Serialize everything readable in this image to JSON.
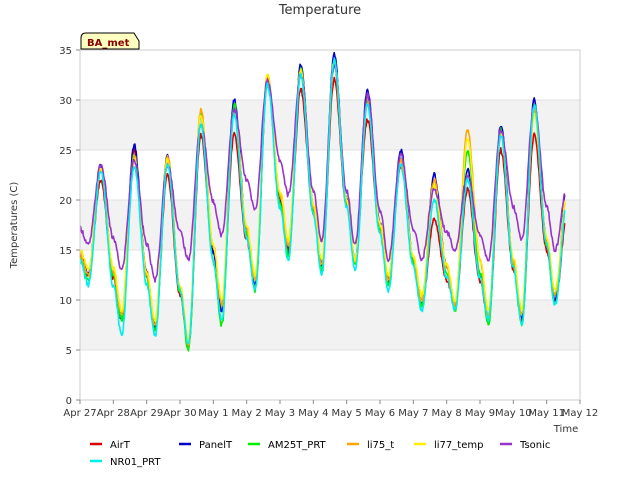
{
  "chart_data": {
    "type": "line",
    "title": "Temperature",
    "xlabel": "Time",
    "ylabel": "Temperatures (C)",
    "station_badge": "BA_met",
    "xlim": [
      0,
      15
    ],
    "ylim": [
      0,
      35
    ],
    "x_ticks": [
      {
        "value": 0,
        "label": "Apr 27"
      },
      {
        "value": 1,
        "label": "Apr 28"
      },
      {
        "value": 2,
        "label": "Apr 29"
      },
      {
        "value": 3,
        "label": "Apr 30"
      },
      {
        "value": 4,
        "label": "May 1"
      },
      {
        "value": 5,
        "label": "May 2"
      },
      {
        "value": 6,
        "label": "May 3"
      },
      {
        "value": 7,
        "label": "May 4"
      },
      {
        "value": 8,
        "label": "May 5"
      },
      {
        "value": 9,
        "label": "May 6"
      },
      {
        "value": 10,
        "label": "May 7"
      },
      {
        "value": 11,
        "label": "May 8"
      },
      {
        "value": 12,
        "label": "May 9"
      },
      {
        "value": 13,
        "label": "May 10"
      },
      {
        "value": 14,
        "label": "May 11"
      },
      {
        "value": 15,
        "label": "May 12"
      }
    ],
    "y_ticks": [
      0,
      5,
      10,
      15,
      20,
      25,
      30,
      35
    ],
    "grid": "horizontal bands",
    "legend_position": "bottom",
    "days": [
      "Apr 27",
      "Apr 28",
      "Apr 29",
      "Apr 30",
      "May 1",
      "May 2",
      "May 3",
      "May 4",
      "May 5",
      "May 6",
      "May 7",
      "May 8",
      "May 9",
      "May 10",
      "May 11"
    ],
    "series": [
      {
        "name": "AirT",
        "color": "#dd0000",
        "mins": [
          12.5,
          8.0,
          7.5,
          5.5,
          9.5,
          11.5,
          15.0,
          13.5,
          14.0,
          12.0,
          9.5,
          9.5,
          8.0,
          8.0,
          10.0
        ],
        "maxs": [
          22.0,
          25.0,
          22.5,
          26.5,
          26.5,
          32.0,
          31.0,
          32.0,
          28.0,
          23.5,
          18.0,
          21.0,
          25.0,
          26.5,
          18.5
        ]
      },
      {
        "name": "PanelT",
        "color": "#0000cc",
        "mins": [
          12.5,
          8.0,
          7.0,
          5.5,
          9.0,
          11.5,
          14.5,
          13.5,
          14.0,
          12.0,
          9.5,
          9.5,
          8.0,
          8.0,
          10.0
        ],
        "maxs": [
          23.5,
          25.5,
          24.5,
          28.5,
          30.0,
          32.0,
          33.5,
          34.5,
          31.0,
          25.0,
          22.5,
          23.0,
          27.5,
          30.0,
          22.0
        ]
      },
      {
        "name": "AM25T_PRT",
        "color": "#00ee00",
        "mins": [
          12.0,
          8.0,
          7.0,
          5.0,
          7.5,
          11.0,
          14.5,
          13.0,
          13.5,
          11.5,
          9.5,
          9.0,
          7.5,
          7.5,
          9.5
        ],
        "maxs": [
          23.0,
          24.5,
          24.0,
          28.5,
          29.5,
          32.0,
          33.0,
          34.0,
          30.0,
          24.0,
          21.5,
          25.0,
          27.0,
          29.5,
          21.5
        ]
      },
      {
        "name": "li75_t",
        "color": "#ffa500",
        "mins": [
          12.5,
          8.5,
          7.5,
          5.5,
          9.5,
          12.0,
          15.5,
          13.5,
          14.0,
          12.0,
          10.0,
          9.5,
          8.5,
          8.5,
          10.5
        ],
        "maxs": [
          23.0,
          24.5,
          24.5,
          29.0,
          29.0,
          32.5,
          33.0,
          33.5,
          30.0,
          24.0,
          22.0,
          27.0,
          26.5,
          29.0,
          21.0
        ]
      },
      {
        "name": "li77_temp",
        "color": "#ffee00",
        "mins": [
          13.0,
          9.0,
          8.0,
          6.0,
          10.0,
          12.5,
          16.0,
          14.0,
          14.0,
          12.5,
          10.5,
          10.0,
          9.0,
          9.0,
          11.0
        ],
        "maxs": [
          23.0,
          24.0,
          24.0,
          28.5,
          29.0,
          32.5,
          33.0,
          34.0,
          29.5,
          23.5,
          21.5,
          26.0,
          26.5,
          28.5,
          21.0
        ]
      },
      {
        "name": "Tsonic",
        "color": "#9933cc",
        "mins": [
          15.5,
          13.0,
          12.0,
          14.0,
          16.5,
          19.0,
          20.5,
          16.0,
          15.5,
          14.0,
          14.0,
          15.0,
          14.0,
          16.0,
          15.0
        ],
        "maxs": [
          23.5,
          24.0,
          23.5,
          27.5,
          29.0,
          32.0,
          32.5,
          33.5,
          30.5,
          24.5,
          21.0,
          22.5,
          27.0,
          29.5,
          21.5
        ]
      },
      {
        "name": "NR01_PRT",
        "color": "#00eeee",
        "mins": [
          11.5,
          6.5,
          6.5,
          5.5,
          8.0,
          11.0,
          14.0,
          12.5,
          13.0,
          11.0,
          9.0,
          9.0,
          8.0,
          7.5,
          9.5
        ],
        "maxs": [
          23.0,
          23.5,
          23.5,
          27.5,
          28.5,
          31.5,
          32.5,
          34.0,
          29.5,
          23.5,
          20.0,
          22.0,
          26.5,
          29.5,
          20.0
        ]
      }
    ]
  }
}
